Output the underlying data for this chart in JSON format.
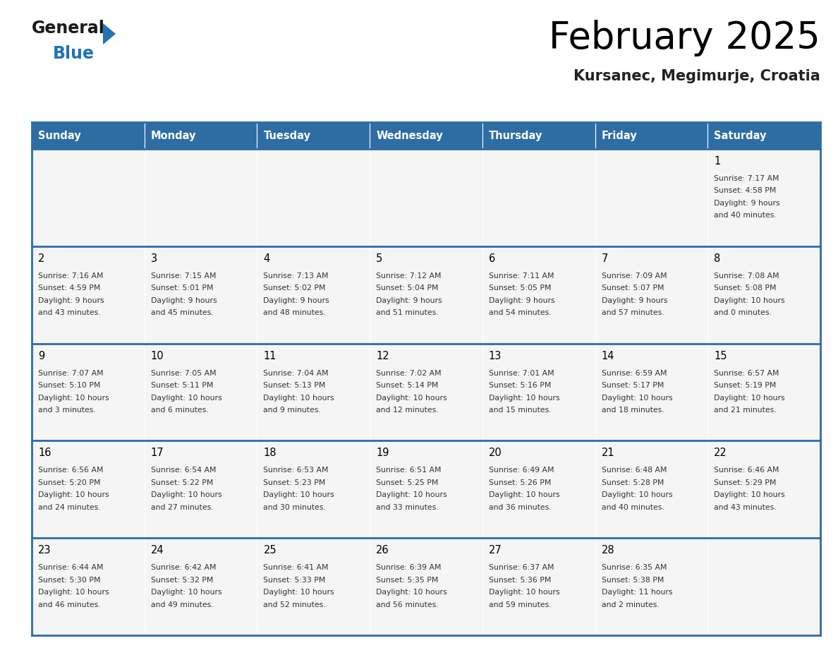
{
  "title": "February 2025",
  "subtitle": "Kursanec, Megimurje, Croatia",
  "header_bg": "#2E6DA4",
  "header_text_color": "#FFFFFF",
  "cell_bg": "#F5F5F5",
  "grid_line_color": "#2E6DA4",
  "text_color": "#333333",
  "day_headers": [
    "Sunday",
    "Monday",
    "Tuesday",
    "Wednesday",
    "Thursday",
    "Friday",
    "Saturday"
  ],
  "days": [
    {
      "day": 1,
      "col": 6,
      "row": 0,
      "sunrise": "7:17 AM",
      "sunset": "4:58 PM",
      "daylight_line1": "Daylight: 9 hours",
      "daylight_line2": "and 40 minutes."
    },
    {
      "day": 2,
      "col": 0,
      "row": 1,
      "sunrise": "7:16 AM",
      "sunset": "4:59 PM",
      "daylight_line1": "Daylight: 9 hours",
      "daylight_line2": "and 43 minutes."
    },
    {
      "day": 3,
      "col": 1,
      "row": 1,
      "sunrise": "7:15 AM",
      "sunset": "5:01 PM",
      "daylight_line1": "Daylight: 9 hours",
      "daylight_line2": "and 45 minutes."
    },
    {
      "day": 4,
      "col": 2,
      "row": 1,
      "sunrise": "7:13 AM",
      "sunset": "5:02 PM",
      "daylight_line1": "Daylight: 9 hours",
      "daylight_line2": "and 48 minutes."
    },
    {
      "day": 5,
      "col": 3,
      "row": 1,
      "sunrise": "7:12 AM",
      "sunset": "5:04 PM",
      "daylight_line1": "Daylight: 9 hours",
      "daylight_line2": "and 51 minutes."
    },
    {
      "day": 6,
      "col": 4,
      "row": 1,
      "sunrise": "7:11 AM",
      "sunset": "5:05 PM",
      "daylight_line1": "Daylight: 9 hours",
      "daylight_line2": "and 54 minutes."
    },
    {
      "day": 7,
      "col": 5,
      "row": 1,
      "sunrise": "7:09 AM",
      "sunset": "5:07 PM",
      "daylight_line1": "Daylight: 9 hours",
      "daylight_line2": "and 57 minutes."
    },
    {
      "day": 8,
      "col": 6,
      "row": 1,
      "sunrise": "7:08 AM",
      "sunset": "5:08 PM",
      "daylight_line1": "Daylight: 10 hours",
      "daylight_line2": "and 0 minutes."
    },
    {
      "day": 9,
      "col": 0,
      "row": 2,
      "sunrise": "7:07 AM",
      "sunset": "5:10 PM",
      "daylight_line1": "Daylight: 10 hours",
      "daylight_line2": "and 3 minutes."
    },
    {
      "day": 10,
      "col": 1,
      "row": 2,
      "sunrise": "7:05 AM",
      "sunset": "5:11 PM",
      "daylight_line1": "Daylight: 10 hours",
      "daylight_line2": "and 6 minutes."
    },
    {
      "day": 11,
      "col": 2,
      "row": 2,
      "sunrise": "7:04 AM",
      "sunset": "5:13 PM",
      "daylight_line1": "Daylight: 10 hours",
      "daylight_line2": "and 9 minutes."
    },
    {
      "day": 12,
      "col": 3,
      "row": 2,
      "sunrise": "7:02 AM",
      "sunset": "5:14 PM",
      "daylight_line1": "Daylight: 10 hours",
      "daylight_line2": "and 12 minutes."
    },
    {
      "day": 13,
      "col": 4,
      "row": 2,
      "sunrise": "7:01 AM",
      "sunset": "5:16 PM",
      "daylight_line1": "Daylight: 10 hours",
      "daylight_line2": "and 15 minutes."
    },
    {
      "day": 14,
      "col": 5,
      "row": 2,
      "sunrise": "6:59 AM",
      "sunset": "5:17 PM",
      "daylight_line1": "Daylight: 10 hours",
      "daylight_line2": "and 18 minutes."
    },
    {
      "day": 15,
      "col": 6,
      "row": 2,
      "sunrise": "6:57 AM",
      "sunset": "5:19 PM",
      "daylight_line1": "Daylight: 10 hours",
      "daylight_line2": "and 21 minutes."
    },
    {
      "day": 16,
      "col": 0,
      "row": 3,
      "sunrise": "6:56 AM",
      "sunset": "5:20 PM",
      "daylight_line1": "Daylight: 10 hours",
      "daylight_line2": "and 24 minutes."
    },
    {
      "day": 17,
      "col": 1,
      "row": 3,
      "sunrise": "6:54 AM",
      "sunset": "5:22 PM",
      "daylight_line1": "Daylight: 10 hours",
      "daylight_line2": "and 27 minutes."
    },
    {
      "day": 18,
      "col": 2,
      "row": 3,
      "sunrise": "6:53 AM",
      "sunset": "5:23 PM",
      "daylight_line1": "Daylight: 10 hours",
      "daylight_line2": "and 30 minutes."
    },
    {
      "day": 19,
      "col": 3,
      "row": 3,
      "sunrise": "6:51 AM",
      "sunset": "5:25 PM",
      "daylight_line1": "Daylight: 10 hours",
      "daylight_line2": "and 33 minutes."
    },
    {
      "day": 20,
      "col": 4,
      "row": 3,
      "sunrise": "6:49 AM",
      "sunset": "5:26 PM",
      "daylight_line1": "Daylight: 10 hours",
      "daylight_line2": "and 36 minutes."
    },
    {
      "day": 21,
      "col": 5,
      "row": 3,
      "sunrise": "6:48 AM",
      "sunset": "5:28 PM",
      "daylight_line1": "Daylight: 10 hours",
      "daylight_line2": "and 40 minutes."
    },
    {
      "day": 22,
      "col": 6,
      "row": 3,
      "sunrise": "6:46 AM",
      "sunset": "5:29 PM",
      "daylight_line1": "Daylight: 10 hours",
      "daylight_line2": "and 43 minutes."
    },
    {
      "day": 23,
      "col": 0,
      "row": 4,
      "sunrise": "6:44 AM",
      "sunset": "5:30 PM",
      "daylight_line1": "Daylight: 10 hours",
      "daylight_line2": "and 46 minutes."
    },
    {
      "day": 24,
      "col": 1,
      "row": 4,
      "sunrise": "6:42 AM",
      "sunset": "5:32 PM",
      "daylight_line1": "Daylight: 10 hours",
      "daylight_line2": "and 49 minutes."
    },
    {
      "day": 25,
      "col": 2,
      "row": 4,
      "sunrise": "6:41 AM",
      "sunset": "5:33 PM",
      "daylight_line1": "Daylight: 10 hours",
      "daylight_line2": "and 52 minutes."
    },
    {
      "day": 26,
      "col": 3,
      "row": 4,
      "sunrise": "6:39 AM",
      "sunset": "5:35 PM",
      "daylight_line1": "Daylight: 10 hours",
      "daylight_line2": "and 56 minutes."
    },
    {
      "day": 27,
      "col": 4,
      "row": 4,
      "sunrise": "6:37 AM",
      "sunset": "5:36 PM",
      "daylight_line1": "Daylight: 10 hours",
      "daylight_line2": "and 59 minutes."
    },
    {
      "day": 28,
      "col": 5,
      "row": 4,
      "sunrise": "6:35 AM",
      "sunset": "5:38 PM",
      "daylight_line1": "Daylight: 11 hours",
      "daylight_line2": "and 2 minutes."
    }
  ],
  "logo_general_color": "#1a1a1a",
  "logo_blue_color": "#2272B8",
  "logo_triangle_color": "#2272B8",
  "fig_width": 11.88,
  "fig_height": 9.18,
  "dpi": 100
}
